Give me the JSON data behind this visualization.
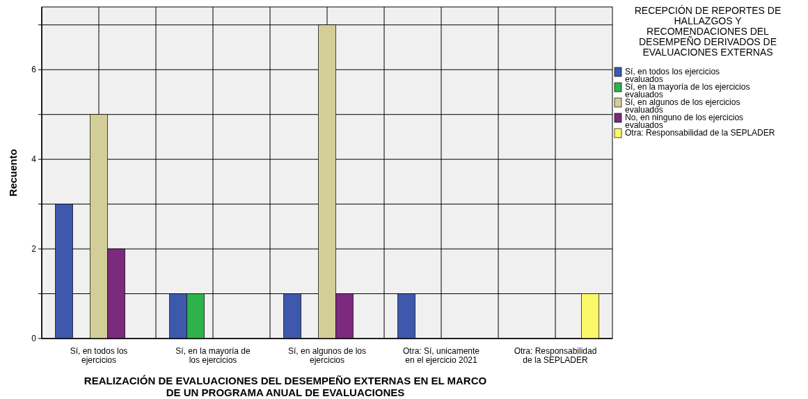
{
  "chart_data": {
    "type": "bar",
    "xlabel": "REALIZACIÓN DE EVALUACIONES DEL DESEMPEÑO EXTERNAS EN EL MARCO DE UN PROGRAMA ANUAL DE EVALUACIONES",
    "ylabel": "Recuento",
    "legend_title": "RECEPCIÓN DE REPORTES DE HALLAZGOS Y RECOMENDACIONES DEL DESEMPEÑO DERIVADOS DE EVALUACIONES EXTERNAS",
    "categories": [
      "Sí, en todos los ejercicios",
      "Sí, en la mayoría de los ejercicios",
      "Sí, en algunos de los ejercicios",
      "Otra: Sí, unicamente en el ejercicio 2021",
      "Otra: Responsabilidad de la SEPLADER"
    ],
    "series": [
      {
        "name": "Sí, en todos los ejercicios evaluados",
        "color": "#3e58ac",
        "values": [
          3,
          1,
          1,
          1,
          null
        ]
      },
      {
        "name": "Sí, en la mayoría de los ejercicios evaluados",
        "color": "#2db34a",
        "values": [
          null,
          1,
          null,
          null,
          null
        ]
      },
      {
        "name": "Sí, en algunos de los ejercicios evaluados",
        "color": "#d3ce97",
        "values": [
          5,
          null,
          7,
          null,
          null
        ]
      },
      {
        "name": "No, en ninguno de los ejercicios evaluados",
        "color": "#7b2a7e",
        "values": [
          2,
          null,
          1,
          null,
          null
        ]
      },
      {
        "name": "Otra: Responsabilidad de la SEPLADER",
        "color": "#fbf869",
        "values": [
          null,
          null,
          null,
          null,
          1
        ]
      }
    ],
    "ylim": [
      0,
      7.4
    ],
    "yticks": [
      0,
      {
        "value": 1,
        "label": null
      },
      2,
      {
        "value": 3,
        "label": null
      },
      4,
      {
        "value": 5,
        "label": null
      },
      6,
      {
        "value": 7,
        "label": null
      }
    ],
    "grid": true,
    "legend": "right"
  }
}
